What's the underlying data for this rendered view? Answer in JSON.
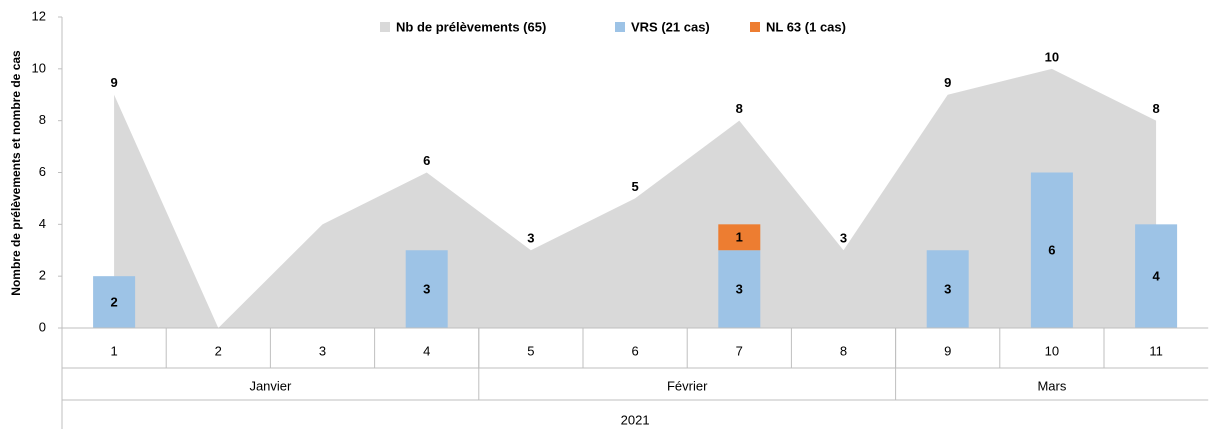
{
  "chart_data": {
    "type": "area_bar",
    "ylabel": "Nombre de prélèvements et nombre de cas",
    "categories": [
      "1",
      "2",
      "3",
      "4",
      "5",
      "6",
      "7",
      "8",
      "9",
      "10",
      "11"
    ],
    "groups": [
      {
        "label": "Janvier",
        "count": 4
      },
      {
        "label": "Février",
        "count": 4
      },
      {
        "label": "Mars",
        "count": 3
      }
    ],
    "year": "2021",
    "ylim": [
      0,
      12
    ],
    "yticks": [
      0,
      2,
      4,
      6,
      8,
      10,
      12
    ],
    "grid": false,
    "legend": "top",
    "series": [
      {
        "name": "Nb de prélèvements (65)",
        "kind": "area",
        "color": "#d9d9d9",
        "values": [
          9,
          0,
          4,
          6,
          3,
          5,
          8,
          3,
          9,
          10,
          8
        ],
        "value_labels": [
          "9",
          null,
          null,
          "6",
          "3",
          "5",
          "8",
          "3",
          "9",
          "10",
          "8"
        ]
      },
      {
        "name": "VRS (21 cas)",
        "kind": "bar",
        "color": "#9dc3e6",
        "values": [
          2,
          0,
          0,
          3,
          0,
          0,
          3,
          0,
          3,
          6,
          4
        ],
        "value_labels": [
          "2",
          null,
          null,
          "3",
          null,
          null,
          "3",
          null,
          "3",
          "6",
          "4"
        ]
      },
      {
        "name": "NL 63 (1 cas)",
        "kind": "bar",
        "color": "#ed7d31",
        "values": [
          0,
          0,
          0,
          0,
          0,
          0,
          1,
          0,
          0,
          0,
          0
        ],
        "value_labels": [
          null,
          null,
          null,
          null,
          null,
          null,
          "1",
          null,
          null,
          null,
          null
        ]
      }
    ]
  }
}
